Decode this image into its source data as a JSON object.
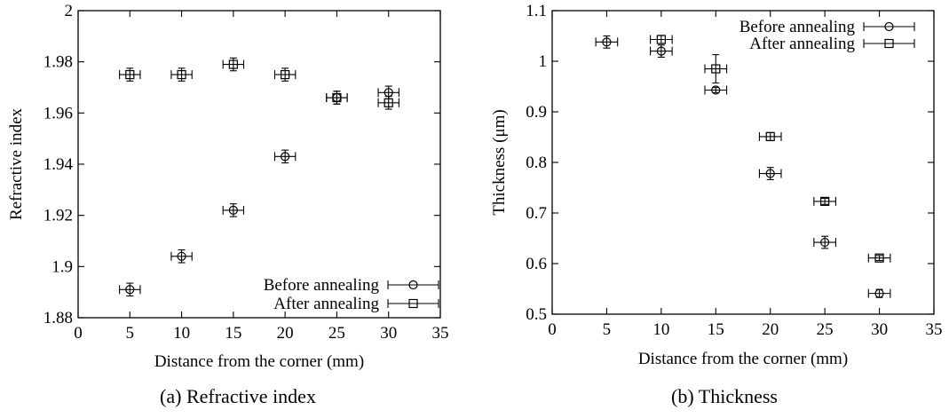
{
  "chart_data": [
    {
      "type": "scatter",
      "caption": "(a) Refractive index",
      "xlabel": "Distance from the corner (mm)",
      "ylabel": "Refractive index",
      "xlim": [
        0,
        35
      ],
      "ylim": [
        1.88,
        2.0
      ],
      "xticks": [
        0,
        5,
        10,
        15,
        20,
        25,
        30,
        35
      ],
      "yticks": [
        1.88,
        1.9,
        1.92,
        1.94,
        1.96,
        1.98,
        2.0
      ],
      "ytick_labels": [
        "1.88",
        "1.9",
        "1.92",
        "1.94",
        "1.96",
        "1.98",
        "2"
      ],
      "grid": false,
      "legend_position": "bottom-right",
      "series": [
        {
          "name": "Before annealing",
          "marker": "circle",
          "x": [
            5,
            10,
            15,
            20,
            25,
            30
          ],
          "y": [
            1.891,
            1.904,
            1.922,
            1.943,
            1.966,
            1.968
          ],
          "xerr": 1,
          "yerr": [
            0.0025,
            0.0025,
            0.0025,
            0.0025,
            0.0025,
            0.0025
          ]
        },
        {
          "name": "After annealing",
          "marker": "square",
          "x": [
            5,
            10,
            15,
            20,
            25,
            30
          ],
          "y": [
            1.975,
            1.975,
            1.979,
            1.975,
            1.966,
            1.964
          ],
          "xerr": 1,
          "yerr": [
            0.0025,
            0.0025,
            0.0025,
            0.0025,
            0.0025,
            0.0025
          ]
        }
      ]
    },
    {
      "type": "scatter",
      "caption": "(b) Thickness",
      "xlabel": "Distance from the corner (mm)",
      "ylabel": "Thickness (μm)",
      "xlim": [
        0,
        35
      ],
      "ylim": [
        0.5,
        1.1
      ],
      "xticks": [
        0,
        5,
        10,
        15,
        20,
        25,
        30,
        35
      ],
      "yticks": [
        0.5,
        0.6,
        0.7,
        0.8,
        0.9,
        1.0,
        1.1
      ],
      "ytick_labels": [
        "0.5",
        "0.6",
        "0.7",
        "0.8",
        "0.9",
        "1",
        "1.1"
      ],
      "grid": false,
      "legend_position": "top-right",
      "series": [
        {
          "name": "Before annealing",
          "marker": "circle",
          "x": [
            5,
            10,
            15,
            20,
            25,
            30
          ],
          "y": [
            1.038,
            1.02,
            0.943,
            0.778,
            0.642,
            0.541
          ],
          "xerr": 1,
          "yerr": [
            0.012,
            0.012,
            0.005,
            0.012,
            0.012,
            0.008
          ]
        },
        {
          "name": "After annealing",
          "marker": "square",
          "x": [
            10,
            15,
            20,
            25,
            30
          ],
          "y": [
            1.043,
            0.985,
            0.851,
            0.723,
            0.611
          ],
          "xerr": 1,
          "yerr": [
            0.008,
            0.028,
            0.008,
            0.006,
            0.005
          ]
        }
      ]
    }
  ]
}
